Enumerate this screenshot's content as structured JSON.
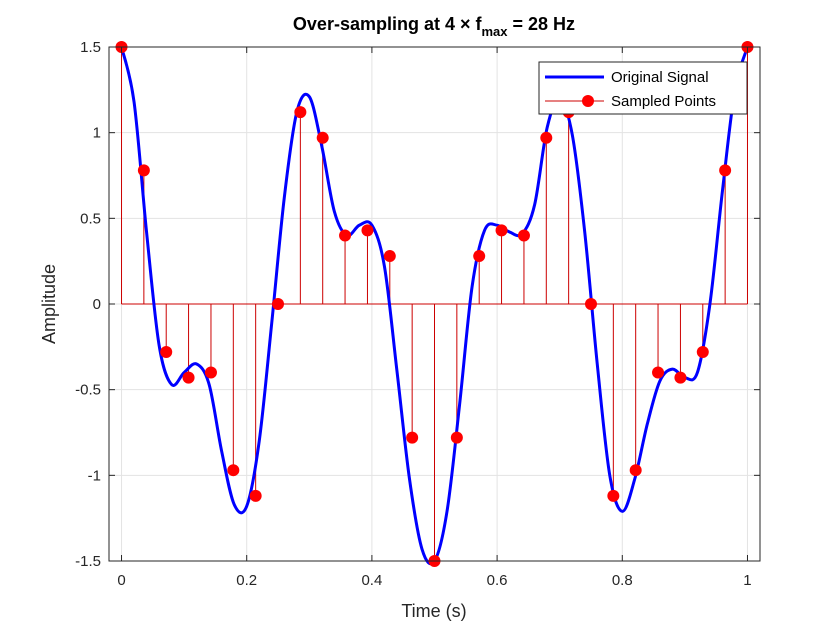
{
  "chart_data": {
    "type": "line",
    "title_main": "Over-sampling at 4 × f",
    "title_sub": "max",
    "title_tail": " = 28 Hz",
    "xlabel": "Time (s)",
    "ylabel": "Amplitude",
    "xlim": [
      -0.02,
      1.02
    ],
    "ylim": [
      -1.5,
      1.5
    ],
    "xticks": [
      0,
      0.2,
      0.4,
      0.6,
      0.8,
      1
    ],
    "xtick_labels": [
      "0",
      "0.2",
      "0.4",
      "0.6",
      "0.8",
      "1"
    ],
    "yticks": [
      -1.5,
      -1,
      -0.5,
      0,
      0.5,
      1,
      1.5
    ],
    "ytick_labels": [
      "-1.5",
      "-1",
      "-0.5",
      "0",
      "0.5",
      "1",
      "1.5"
    ],
    "grid": true,
    "legend_position": "top-right",
    "series": [
      {
        "name": "Original Signal",
        "kind": "line",
        "color": "#0000ff",
        "x": [
          0,
          0.02,
          0.04,
          0.06,
          0.08,
          0.1,
          0.12,
          0.14,
          0.16,
          0.18,
          0.2,
          0.22,
          0.24,
          0.26,
          0.28,
          0.3,
          0.32,
          0.34,
          0.36,
          0.38,
          0.4,
          0.42,
          0.44,
          0.46,
          0.48,
          0.5,
          0.52,
          0.54,
          0.56,
          0.58,
          0.6,
          0.62,
          0.64,
          0.66,
          0.68,
          0.7,
          0.72,
          0.74,
          0.76,
          0.78,
          0.8,
          0.82,
          0.84,
          0.86,
          0.88,
          0.9,
          0.92,
          0.94,
          0.96,
          0.98,
          1
        ],
        "y": [
          1.5,
          1.18,
          0.42,
          -0.24,
          -0.47,
          -0.4,
          -0.35,
          -0.47,
          -0.86,
          -1.17,
          -1.18,
          -0.8,
          -0.11,
          0.62,
          1.12,
          1.21,
          0.92,
          0.54,
          0.4,
          0.46,
          0.46,
          0.22,
          -0.39,
          -1.02,
          -1.43,
          -1.5,
          -1.21,
          -0.59,
          0.1,
          0.43,
          0.46,
          0.42,
          0.41,
          0.58,
          1.03,
          1.2,
          0.99,
          0.42,
          -0.35,
          -1.0,
          -1.21,
          -1.02,
          -0.7,
          -0.45,
          -0.38,
          -0.43,
          -0.4,
          0.0,
          0.66,
          1.25,
          1.5
        ]
      },
      {
        "name": "Sampled Points",
        "kind": "stem",
        "color": "#ff0000",
        "stem_color": "#cc0000",
        "x": [
          0,
          0.0357,
          0.0714,
          0.1071,
          0.1429,
          0.1786,
          0.2143,
          0.25,
          0.2857,
          0.3214,
          0.3571,
          0.3929,
          0.4286,
          0.4643,
          0.5,
          0.5357,
          0.5714,
          0.6071,
          0.6429,
          0.6786,
          0.7143,
          0.75,
          0.7857,
          0.8214,
          0.8571,
          0.8929,
          0.9286,
          0.9643,
          1
        ],
        "y": [
          1.5,
          0.78,
          -0.28,
          -0.43,
          -0.4,
          -0.97,
          -1.12,
          0,
          1.12,
          0.97,
          0.4,
          0.43,
          0.28,
          -0.78,
          -1.5,
          -0.78,
          0.28,
          0.43,
          0.4,
          0.97,
          1.12,
          0,
          -1.12,
          -0.97,
          -0.4,
          -0.43,
          -0.28,
          0.78,
          1.5
        ]
      }
    ]
  }
}
